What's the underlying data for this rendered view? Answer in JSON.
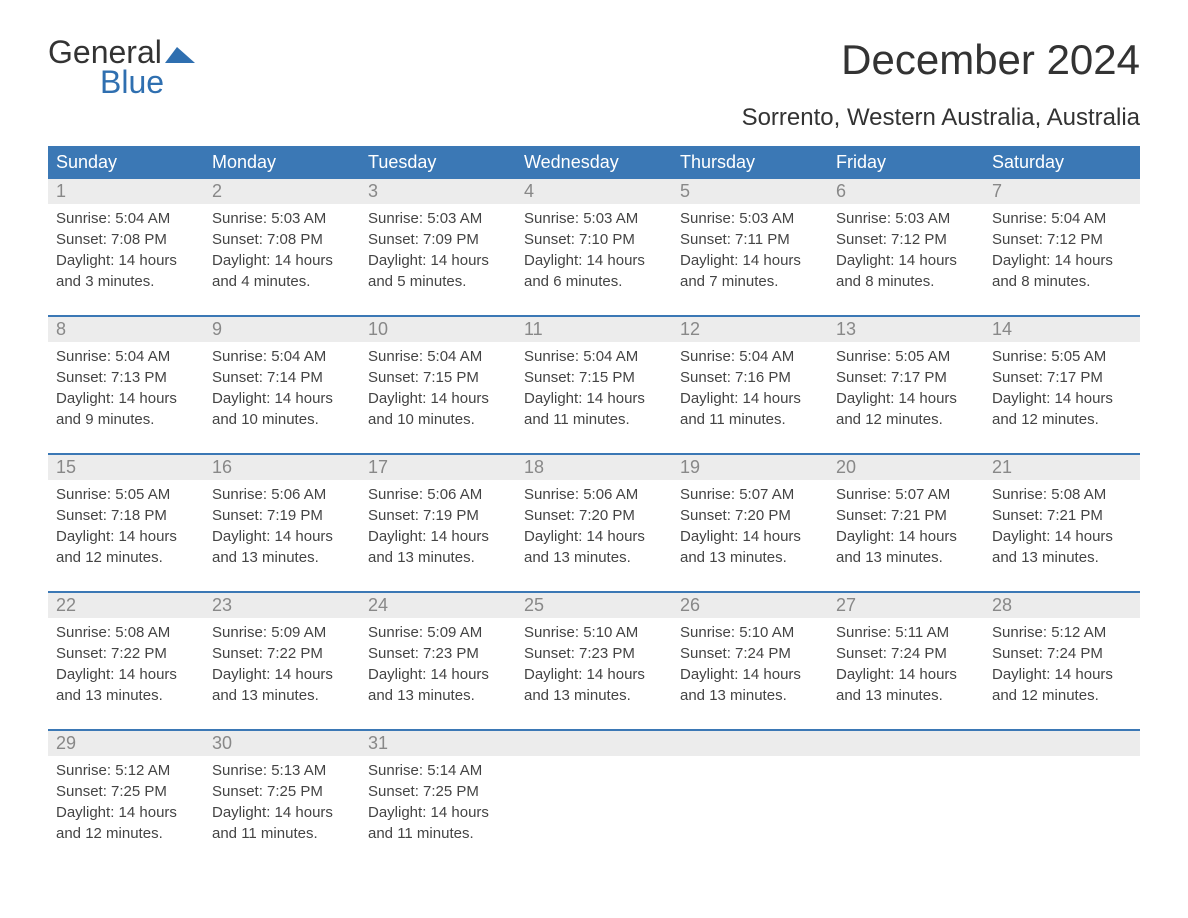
{
  "logo": {
    "word1": "General",
    "word2": "Blue",
    "flag_color": "#2f6fb0",
    "text_color": "#333333"
  },
  "title": "December 2024",
  "subtitle": "Sorrento, Western Australia, Australia",
  "colors": {
    "header_bg": "#3b78b5",
    "header_text": "#ffffff",
    "daynum_bg": "#ececec",
    "daynum_text": "#888888",
    "body_text": "#444444",
    "rule": "#3b78b5"
  },
  "fonts": {
    "title_size": 42,
    "subtitle_size": 24,
    "dayname_size": 18,
    "daynum_size": 18,
    "body_size": 15
  },
  "daynames": [
    "Sunday",
    "Monday",
    "Tuesday",
    "Wednesday",
    "Thursday",
    "Friday",
    "Saturday"
  ],
  "weeks": [
    [
      {
        "n": "1",
        "sunrise": "Sunrise: 5:04 AM",
        "sunset": "Sunset: 7:08 PM",
        "d1": "Daylight: 14 hours",
        "d2": "and 3 minutes."
      },
      {
        "n": "2",
        "sunrise": "Sunrise: 5:03 AM",
        "sunset": "Sunset: 7:08 PM",
        "d1": "Daylight: 14 hours",
        "d2": "and 4 minutes."
      },
      {
        "n": "3",
        "sunrise": "Sunrise: 5:03 AM",
        "sunset": "Sunset: 7:09 PM",
        "d1": "Daylight: 14 hours",
        "d2": "and 5 minutes."
      },
      {
        "n": "4",
        "sunrise": "Sunrise: 5:03 AM",
        "sunset": "Sunset: 7:10 PM",
        "d1": "Daylight: 14 hours",
        "d2": "and 6 minutes."
      },
      {
        "n": "5",
        "sunrise": "Sunrise: 5:03 AM",
        "sunset": "Sunset: 7:11 PM",
        "d1": "Daylight: 14 hours",
        "d2": "and 7 minutes."
      },
      {
        "n": "6",
        "sunrise": "Sunrise: 5:03 AM",
        "sunset": "Sunset: 7:12 PM",
        "d1": "Daylight: 14 hours",
        "d2": "and 8 minutes."
      },
      {
        "n": "7",
        "sunrise": "Sunrise: 5:04 AM",
        "sunset": "Sunset: 7:12 PM",
        "d1": "Daylight: 14 hours",
        "d2": "and 8 minutes."
      }
    ],
    [
      {
        "n": "8",
        "sunrise": "Sunrise: 5:04 AM",
        "sunset": "Sunset: 7:13 PM",
        "d1": "Daylight: 14 hours",
        "d2": "and 9 minutes."
      },
      {
        "n": "9",
        "sunrise": "Sunrise: 5:04 AM",
        "sunset": "Sunset: 7:14 PM",
        "d1": "Daylight: 14 hours",
        "d2": "and 10 minutes."
      },
      {
        "n": "10",
        "sunrise": "Sunrise: 5:04 AM",
        "sunset": "Sunset: 7:15 PM",
        "d1": "Daylight: 14 hours",
        "d2": "and 10 minutes."
      },
      {
        "n": "11",
        "sunrise": "Sunrise: 5:04 AM",
        "sunset": "Sunset: 7:15 PM",
        "d1": "Daylight: 14 hours",
        "d2": "and 11 minutes."
      },
      {
        "n": "12",
        "sunrise": "Sunrise: 5:04 AM",
        "sunset": "Sunset: 7:16 PM",
        "d1": "Daylight: 14 hours",
        "d2": "and 11 minutes."
      },
      {
        "n": "13",
        "sunrise": "Sunrise: 5:05 AM",
        "sunset": "Sunset: 7:17 PM",
        "d1": "Daylight: 14 hours",
        "d2": "and 12 minutes."
      },
      {
        "n": "14",
        "sunrise": "Sunrise: 5:05 AM",
        "sunset": "Sunset: 7:17 PM",
        "d1": "Daylight: 14 hours",
        "d2": "and 12 minutes."
      }
    ],
    [
      {
        "n": "15",
        "sunrise": "Sunrise: 5:05 AM",
        "sunset": "Sunset: 7:18 PM",
        "d1": "Daylight: 14 hours",
        "d2": "and 12 minutes."
      },
      {
        "n": "16",
        "sunrise": "Sunrise: 5:06 AM",
        "sunset": "Sunset: 7:19 PM",
        "d1": "Daylight: 14 hours",
        "d2": "and 13 minutes."
      },
      {
        "n": "17",
        "sunrise": "Sunrise: 5:06 AM",
        "sunset": "Sunset: 7:19 PM",
        "d1": "Daylight: 14 hours",
        "d2": "and 13 minutes."
      },
      {
        "n": "18",
        "sunrise": "Sunrise: 5:06 AM",
        "sunset": "Sunset: 7:20 PM",
        "d1": "Daylight: 14 hours",
        "d2": "and 13 minutes."
      },
      {
        "n": "19",
        "sunrise": "Sunrise: 5:07 AM",
        "sunset": "Sunset: 7:20 PM",
        "d1": "Daylight: 14 hours",
        "d2": "and 13 minutes."
      },
      {
        "n": "20",
        "sunrise": "Sunrise: 5:07 AM",
        "sunset": "Sunset: 7:21 PM",
        "d1": "Daylight: 14 hours",
        "d2": "and 13 minutes."
      },
      {
        "n": "21",
        "sunrise": "Sunrise: 5:08 AM",
        "sunset": "Sunset: 7:21 PM",
        "d1": "Daylight: 14 hours",
        "d2": "and 13 minutes."
      }
    ],
    [
      {
        "n": "22",
        "sunrise": "Sunrise: 5:08 AM",
        "sunset": "Sunset: 7:22 PM",
        "d1": "Daylight: 14 hours",
        "d2": "and 13 minutes."
      },
      {
        "n": "23",
        "sunrise": "Sunrise: 5:09 AM",
        "sunset": "Sunset: 7:22 PM",
        "d1": "Daylight: 14 hours",
        "d2": "and 13 minutes."
      },
      {
        "n": "24",
        "sunrise": "Sunrise: 5:09 AM",
        "sunset": "Sunset: 7:23 PM",
        "d1": "Daylight: 14 hours",
        "d2": "and 13 minutes."
      },
      {
        "n": "25",
        "sunrise": "Sunrise: 5:10 AM",
        "sunset": "Sunset: 7:23 PM",
        "d1": "Daylight: 14 hours",
        "d2": "and 13 minutes."
      },
      {
        "n": "26",
        "sunrise": "Sunrise: 5:10 AM",
        "sunset": "Sunset: 7:24 PM",
        "d1": "Daylight: 14 hours",
        "d2": "and 13 minutes."
      },
      {
        "n": "27",
        "sunrise": "Sunrise: 5:11 AM",
        "sunset": "Sunset: 7:24 PM",
        "d1": "Daylight: 14 hours",
        "d2": "and 13 minutes."
      },
      {
        "n": "28",
        "sunrise": "Sunrise: 5:12 AM",
        "sunset": "Sunset: 7:24 PM",
        "d1": "Daylight: 14 hours",
        "d2": "and 12 minutes."
      }
    ],
    [
      {
        "n": "29",
        "sunrise": "Sunrise: 5:12 AM",
        "sunset": "Sunset: 7:25 PM",
        "d1": "Daylight: 14 hours",
        "d2": "and 12 minutes."
      },
      {
        "n": "30",
        "sunrise": "Sunrise: 5:13 AM",
        "sunset": "Sunset: 7:25 PM",
        "d1": "Daylight: 14 hours",
        "d2": "and 11 minutes."
      },
      {
        "n": "31",
        "sunrise": "Sunrise: 5:14 AM",
        "sunset": "Sunset: 7:25 PM",
        "d1": "Daylight: 14 hours",
        "d2": "and 11 minutes."
      },
      {
        "n": "",
        "sunrise": "",
        "sunset": "",
        "d1": "",
        "d2": "",
        "empty": true
      },
      {
        "n": "",
        "sunrise": "",
        "sunset": "",
        "d1": "",
        "d2": "",
        "empty": true
      },
      {
        "n": "",
        "sunrise": "",
        "sunset": "",
        "d1": "",
        "d2": "",
        "empty": true
      },
      {
        "n": "",
        "sunrise": "",
        "sunset": "",
        "d1": "",
        "d2": "",
        "empty": true
      }
    ]
  ]
}
